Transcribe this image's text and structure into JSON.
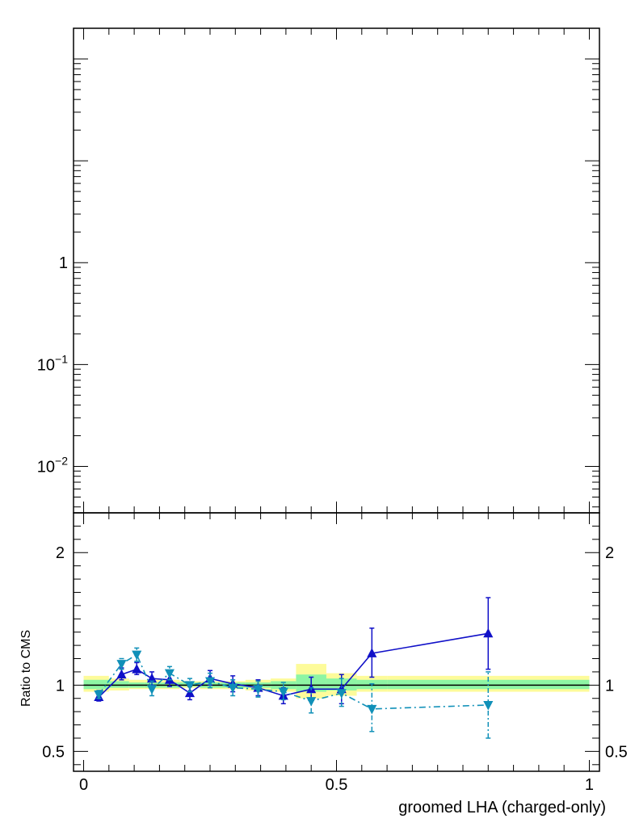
{
  "chart_data": [
    {
      "panel": "main",
      "type": "line",
      "y_scale": "log",
      "ylim": [
        0.0035,
        200
      ],
      "xlim": [
        -0.02,
        1.02
      ],
      "y_ticks": [
        {
          "value": 1,
          "label": "1",
          "exp": ""
        },
        {
          "value": 0.1,
          "label": "10",
          "exp": "−1"
        },
        {
          "value": 0.01,
          "label": "10",
          "exp": "−2"
        }
      ],
      "series": []
    },
    {
      "panel": "ratio",
      "type": "line",
      "ylabel": "Ratio to CMS",
      "xlabel": "groomed LHA (charged-only)",
      "xlim": [
        -0.02,
        1.02
      ],
      "ylim": [
        0.35,
        2.3
      ],
      "x_ticks": [
        {
          "value": 0,
          "label": "0"
        },
        {
          "value": 0.5,
          "label": "0.5"
        },
        {
          "value": 1,
          "label": "1"
        }
      ],
      "y_ticks": [
        {
          "value": 2,
          "label": "2"
        },
        {
          "value": 1,
          "label": "1"
        },
        {
          "value": 0.5,
          "label": "0.5"
        }
      ],
      "uncertainty_bands": {
        "edges": [
          0,
          0.05,
          0.09,
          0.12,
          0.15,
          0.19,
          0.23,
          0.27,
          0.32,
          0.37,
          0.42,
          0.48,
          0.54,
          0.6,
          1.0
        ],
        "stat_syst": [
          [
            0.95,
            1.07
          ],
          [
            0.96,
            1.05
          ],
          [
            0.97,
            1.04
          ],
          [
            0.97,
            1.04
          ],
          [
            0.97,
            1.04
          ],
          [
            0.98,
            1.03
          ],
          [
            0.97,
            1.03
          ],
          [
            0.97,
            1.03
          ],
          [
            0.96,
            1.04
          ],
          [
            0.95,
            1.05
          ],
          [
            0.9,
            1.16
          ],
          [
            0.92,
            1.09
          ],
          [
            0.95,
            1.07
          ],
          [
            0.95,
            1.07
          ]
        ],
        "stat": [
          [
            0.97,
            1.04
          ],
          [
            0.98,
            1.03
          ],
          [
            0.98,
            1.02
          ],
          [
            0.98,
            1.02
          ],
          [
            0.98,
            1.02
          ],
          [
            0.99,
            1.02
          ],
          [
            0.98,
            1.02
          ],
          [
            0.98,
            1.02
          ],
          [
            0.98,
            1.02
          ],
          [
            0.97,
            1.03
          ],
          [
            0.95,
            1.08
          ],
          [
            0.96,
            1.05
          ],
          [
            0.97,
            1.04
          ],
          [
            0.97,
            1.04
          ]
        ]
      },
      "reference_line": 1,
      "series": [
        {
          "marker": "triangle-up",
          "line_style": "solid",
          "color": "#1010c8",
          "points": [
            {
              "x": 0.03,
              "y": 0.91,
              "lo": 0.88,
              "hi": 0.94
            },
            {
              "x": 0.075,
              "y": 1.08,
              "lo": 1.04,
              "hi": 1.13
            },
            {
              "x": 0.105,
              "y": 1.12,
              "lo": 1.08,
              "hi": 1.17
            },
            {
              "x": 0.135,
              "y": 1.05,
              "lo": 1.0,
              "hi": 1.1
            },
            {
              "x": 0.17,
              "y": 1.04,
              "lo": 0.99,
              "hi": 1.09
            },
            {
              "x": 0.21,
              "y": 0.94,
              "lo": 0.89,
              "hi": 0.99
            },
            {
              "x": 0.25,
              "y": 1.05,
              "lo": 1.0,
              "hi": 1.11
            },
            {
              "x": 0.295,
              "y": 1.01,
              "lo": 0.95,
              "hi": 1.07
            },
            {
              "x": 0.345,
              "y": 0.98,
              "lo": 0.92,
              "hi": 1.04
            },
            {
              "x": 0.395,
              "y": 0.92,
              "lo": 0.86,
              "hi": 0.98
            },
            {
              "x": 0.45,
              "y": 0.97,
              "lo": 0.89,
              "hi": 1.06
            },
            {
              "x": 0.51,
              "y": 0.97,
              "lo": 0.86,
              "hi": 1.08
            },
            {
              "x": 0.57,
              "y": 1.24,
              "lo": 1.06,
              "hi": 1.43
            },
            {
              "x": 0.8,
              "y": 1.39,
              "lo": 1.12,
              "hi": 1.66
            }
          ]
        },
        {
          "marker": "triangle-down",
          "line_style": "dash-dot",
          "color": "#1090b8",
          "points": [
            {
              "x": 0.03,
              "y": 0.93,
              "lo": 0.9,
              "hi": 0.96
            },
            {
              "x": 0.075,
              "y": 1.16,
              "lo": 1.12,
              "hi": 1.2
            },
            {
              "x": 0.105,
              "y": 1.23,
              "lo": 1.18,
              "hi": 1.28
            },
            {
              "x": 0.135,
              "y": 0.97,
              "lo": 0.92,
              "hi": 1.03
            },
            {
              "x": 0.17,
              "y": 1.09,
              "lo": 1.04,
              "hi": 1.14
            },
            {
              "x": 0.21,
              "y": 1.0,
              "lo": 0.95,
              "hi": 1.05
            },
            {
              "x": 0.25,
              "y": 1.03,
              "lo": 0.98,
              "hi": 1.09
            },
            {
              "x": 0.295,
              "y": 0.98,
              "lo": 0.92,
              "hi": 1.04
            },
            {
              "x": 0.345,
              "y": 0.97,
              "lo": 0.91,
              "hi": 1.03
            },
            {
              "x": 0.395,
              "y": 0.95,
              "lo": 0.89,
              "hi": 1.02
            },
            {
              "x": 0.45,
              "y": 0.88,
              "lo": 0.79,
              "hi": 0.98
            },
            {
              "x": 0.51,
              "y": 0.94,
              "lo": 0.84,
              "hi": 1.05
            },
            {
              "x": 0.57,
              "y": 0.82,
              "lo": 0.65,
              "hi": 1.01
            },
            {
              "x": 0.8,
              "y": 0.85,
              "lo": 0.6,
              "hi": 1.1
            }
          ]
        }
      ]
    }
  ]
}
